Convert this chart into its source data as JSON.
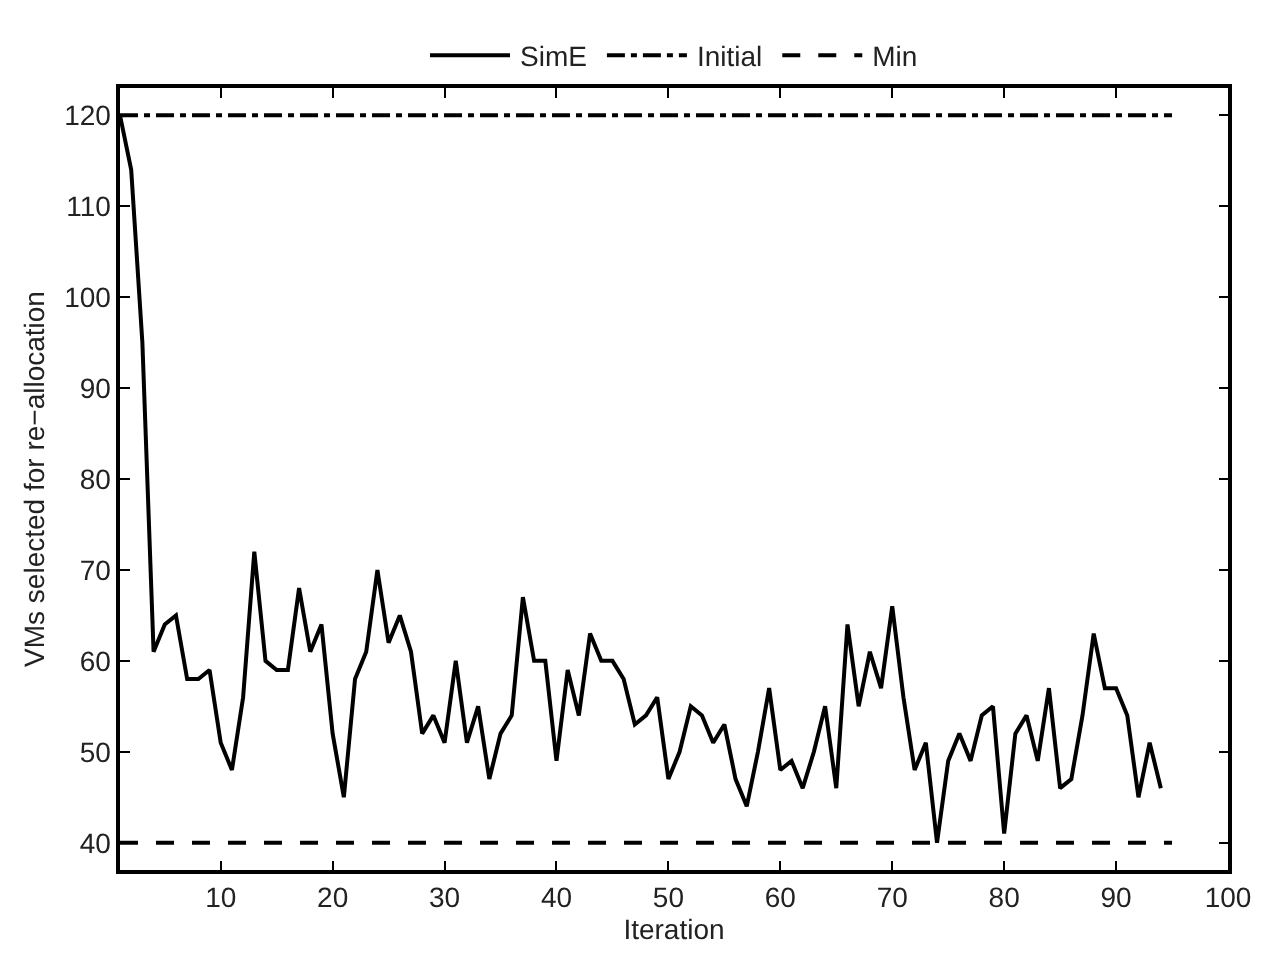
{
  "chart_data": {
    "type": "line",
    "xlabel": "Iteration",
    "ylabel": "VMs selected for re−allocation",
    "xlim": [
      1,
      100
    ],
    "xticks": [
      10,
      20,
      30,
      40,
      50,
      60,
      70,
      80,
      90,
      100
    ],
    "ylim": [
      37,
      123
    ],
    "yticks": [
      40,
      50,
      60,
      70,
      80,
      90,
      100,
      110,
      120
    ],
    "legend": "top",
    "marker": "none",
    "series": [
      {
        "name": "SimE",
        "color": "#000000",
        "line_style": "solid",
        "x": [
          1,
          2,
          3,
          4,
          5,
          6,
          7,
          8,
          9,
          10,
          11,
          12,
          13,
          14,
          15,
          16,
          17,
          18,
          19,
          20,
          21,
          22,
          23,
          24,
          25,
          26,
          27,
          28,
          29,
          30,
          31,
          32,
          33,
          34,
          35,
          36,
          37,
          38,
          39,
          40,
          41,
          42,
          43,
          44,
          45,
          46,
          47,
          48,
          49,
          50,
          51,
          52,
          53,
          54,
          55,
          56,
          57,
          58,
          59,
          60,
          61,
          62,
          63,
          64,
          65,
          66,
          67,
          68,
          69,
          70,
          71,
          72,
          73,
          74,
          75,
          76,
          77,
          78,
          79,
          80,
          81,
          82,
          83,
          84,
          85,
          86,
          87,
          88,
          89,
          90,
          91,
          92,
          93,
          94
        ],
        "values": [
          120,
          114,
          95,
          61,
          64,
          65,
          58,
          58,
          59,
          51,
          48,
          56,
          72,
          60,
          59,
          59,
          68,
          61,
          64,
          52,
          45,
          58,
          61,
          70,
          62,
          65,
          61,
          52,
          54,
          51,
          60,
          51,
          55,
          47,
          52,
          54,
          67,
          60,
          60,
          49,
          59,
          54,
          63,
          60,
          60,
          58,
          53,
          54,
          56,
          47,
          50,
          55,
          54,
          51,
          53,
          47,
          44,
          50,
          57,
          48,
          49,
          46,
          50,
          55,
          46,
          64,
          55,
          61,
          57,
          66,
          56,
          48,
          51,
          40,
          49,
          52,
          49,
          54,
          55,
          41,
          52,
          54,
          49,
          57,
          46,
          47,
          54,
          63,
          57,
          57,
          54,
          45,
          51,
          46
        ]
      },
      {
        "name": "Initial",
        "color": "#000000",
        "line_style": "dashdot",
        "x": [
          1,
          95
        ],
        "values": [
          120,
          120
        ]
      },
      {
        "name": "Min",
        "color": "#000000",
        "line_style": "dashed",
        "x": [
          1,
          95
        ],
        "values": [
          40,
          40
        ]
      }
    ]
  }
}
